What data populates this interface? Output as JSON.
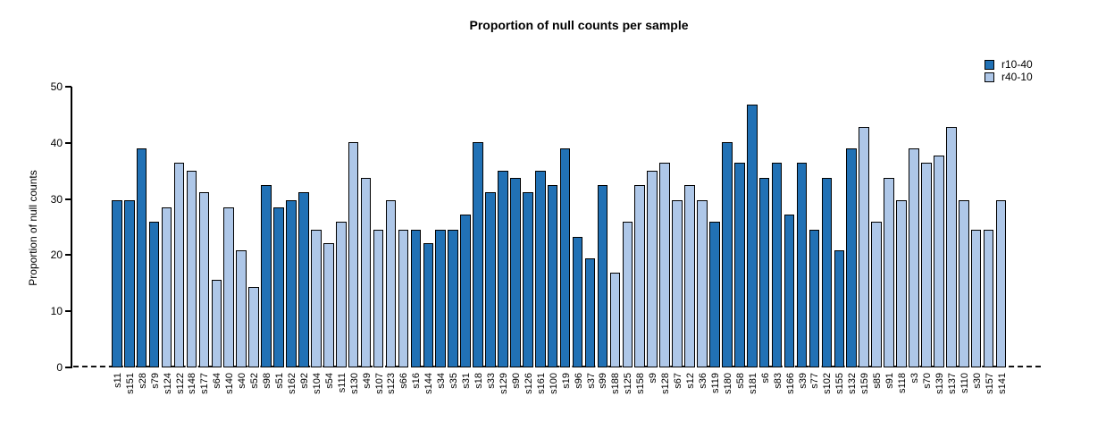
{
  "chart_data": {
    "type": "bar",
    "title": "Proportion of null counts per sample",
    "xlabel": "",
    "ylabel": "Proportion of null counts",
    "ylim": [
      0,
      50
    ],
    "yticks": [
      0,
      10,
      20,
      30,
      40,
      50
    ],
    "grid": false,
    "legend_position": "topright",
    "baseline_style": "dashed",
    "legend": [
      {
        "label": "r10-40",
        "color": "#2171b5"
      },
      {
        "label": "r40-10",
        "color": "#aec7e8"
      }
    ],
    "series_colors": {
      "r10-40": "#2171b5",
      "r40-10": "#aec7e8"
    },
    "bars": [
      {
        "sample": "s11",
        "value": 29.8,
        "series": "r10-40"
      },
      {
        "sample": "s151",
        "value": 29.8,
        "series": "r10-40"
      },
      {
        "sample": "s28",
        "value": 39.0,
        "series": "r10-40"
      },
      {
        "sample": "s79",
        "value": 25.9,
        "series": "r10-40"
      },
      {
        "sample": "s124",
        "value": 28.5,
        "series": "r40-10"
      },
      {
        "sample": "s122",
        "value": 36.4,
        "series": "r40-10"
      },
      {
        "sample": "s148",
        "value": 35.0,
        "series": "r40-10"
      },
      {
        "sample": "s177",
        "value": 31.2,
        "series": "r40-10"
      },
      {
        "sample": "s64",
        "value": 15.6,
        "series": "r40-10"
      },
      {
        "sample": "s140",
        "value": 28.5,
        "series": "r40-10"
      },
      {
        "sample": "s40",
        "value": 20.8,
        "series": "r40-10"
      },
      {
        "sample": "s52",
        "value": 14.3,
        "series": "r40-10"
      },
      {
        "sample": "s98",
        "value": 32.5,
        "series": "r10-40"
      },
      {
        "sample": "s51",
        "value": 28.5,
        "series": "r10-40"
      },
      {
        "sample": "s162",
        "value": 29.8,
        "series": "r10-40"
      },
      {
        "sample": "s92",
        "value": 31.2,
        "series": "r10-40"
      },
      {
        "sample": "s104",
        "value": 24.5,
        "series": "r40-10"
      },
      {
        "sample": "s54",
        "value": 22.1,
        "series": "r40-10"
      },
      {
        "sample": "s111",
        "value": 25.9,
        "series": "r40-10"
      },
      {
        "sample": "s130",
        "value": 40.2,
        "series": "r40-10"
      },
      {
        "sample": "s49",
        "value": 33.7,
        "series": "r40-10"
      },
      {
        "sample": "s107",
        "value": 24.5,
        "series": "r40-10"
      },
      {
        "sample": "s123",
        "value": 29.8,
        "series": "r40-10"
      },
      {
        "sample": "s66",
        "value": 24.5,
        "series": "r40-10"
      },
      {
        "sample": "s16",
        "value": 24.5,
        "series": "r10-40"
      },
      {
        "sample": "s144",
        "value": 22.1,
        "series": "r10-40"
      },
      {
        "sample": "s34",
        "value": 24.5,
        "series": "r10-40"
      },
      {
        "sample": "s35",
        "value": 24.5,
        "series": "r10-40"
      },
      {
        "sample": "s31",
        "value": 27.2,
        "series": "r10-40"
      },
      {
        "sample": "s18",
        "value": 40.2,
        "series": "r10-40"
      },
      {
        "sample": "s33",
        "value": 31.2,
        "series": "r10-40"
      },
      {
        "sample": "s129",
        "value": 35.0,
        "series": "r10-40"
      },
      {
        "sample": "s90",
        "value": 33.7,
        "series": "r10-40"
      },
      {
        "sample": "s126",
        "value": 31.2,
        "series": "r10-40"
      },
      {
        "sample": "s161",
        "value": 35.0,
        "series": "r10-40"
      },
      {
        "sample": "s100",
        "value": 32.5,
        "series": "r10-40"
      },
      {
        "sample": "s19",
        "value": 39.0,
        "series": "r10-40"
      },
      {
        "sample": "s96",
        "value": 23.3,
        "series": "r10-40"
      },
      {
        "sample": "s37",
        "value": 19.5,
        "series": "r10-40"
      },
      {
        "sample": "s99",
        "value": 32.5,
        "series": "r10-40"
      },
      {
        "sample": "s188",
        "value": 16.9,
        "series": "r40-10"
      },
      {
        "sample": "s125",
        "value": 25.9,
        "series": "r40-10"
      },
      {
        "sample": "s158",
        "value": 32.5,
        "series": "r40-10"
      },
      {
        "sample": "s9",
        "value": 35.0,
        "series": "r40-10"
      },
      {
        "sample": "s128",
        "value": 36.4,
        "series": "r40-10"
      },
      {
        "sample": "s67",
        "value": 29.8,
        "series": "r40-10"
      },
      {
        "sample": "s12",
        "value": 32.5,
        "series": "r40-10"
      },
      {
        "sample": "s36",
        "value": 29.8,
        "series": "r40-10"
      },
      {
        "sample": "s119",
        "value": 25.9,
        "series": "r10-40"
      },
      {
        "sample": "s180",
        "value": 40.2,
        "series": "r10-40"
      },
      {
        "sample": "s58",
        "value": 36.4,
        "series": "r10-40"
      },
      {
        "sample": "s181",
        "value": 46.8,
        "series": "r10-40"
      },
      {
        "sample": "s6",
        "value": 33.7,
        "series": "r10-40"
      },
      {
        "sample": "s83",
        "value": 36.4,
        "series": "r10-40"
      },
      {
        "sample": "s166",
        "value": 27.2,
        "series": "r10-40"
      },
      {
        "sample": "s39",
        "value": 36.4,
        "series": "r10-40"
      },
      {
        "sample": "s77",
        "value": 24.5,
        "series": "r10-40"
      },
      {
        "sample": "s102",
        "value": 33.7,
        "series": "r10-40"
      },
      {
        "sample": "s155",
        "value": 20.8,
        "series": "r10-40"
      },
      {
        "sample": "s132",
        "value": 39.0,
        "series": "r10-40"
      },
      {
        "sample": "s159",
        "value": 42.8,
        "series": "r40-10"
      },
      {
        "sample": "s85",
        "value": 25.9,
        "series": "r40-10"
      },
      {
        "sample": "s91",
        "value": 33.7,
        "series": "r40-10"
      },
      {
        "sample": "s118",
        "value": 29.8,
        "series": "r40-10"
      },
      {
        "sample": "s3",
        "value": 39.0,
        "series": "r40-10"
      },
      {
        "sample": "s70",
        "value": 36.4,
        "series": "r40-10"
      },
      {
        "sample": "s139",
        "value": 37.7,
        "series": "r40-10"
      },
      {
        "sample": "s137",
        "value": 42.8,
        "series": "r40-10"
      },
      {
        "sample": "s110",
        "value": 29.8,
        "series": "r40-10"
      },
      {
        "sample": "s30",
        "value": 24.5,
        "series": "r40-10"
      },
      {
        "sample": "s157",
        "value": 24.5,
        "series": "r40-10"
      },
      {
        "sample": "s141",
        "value": 29.8,
        "series": "r40-10"
      }
    ]
  }
}
